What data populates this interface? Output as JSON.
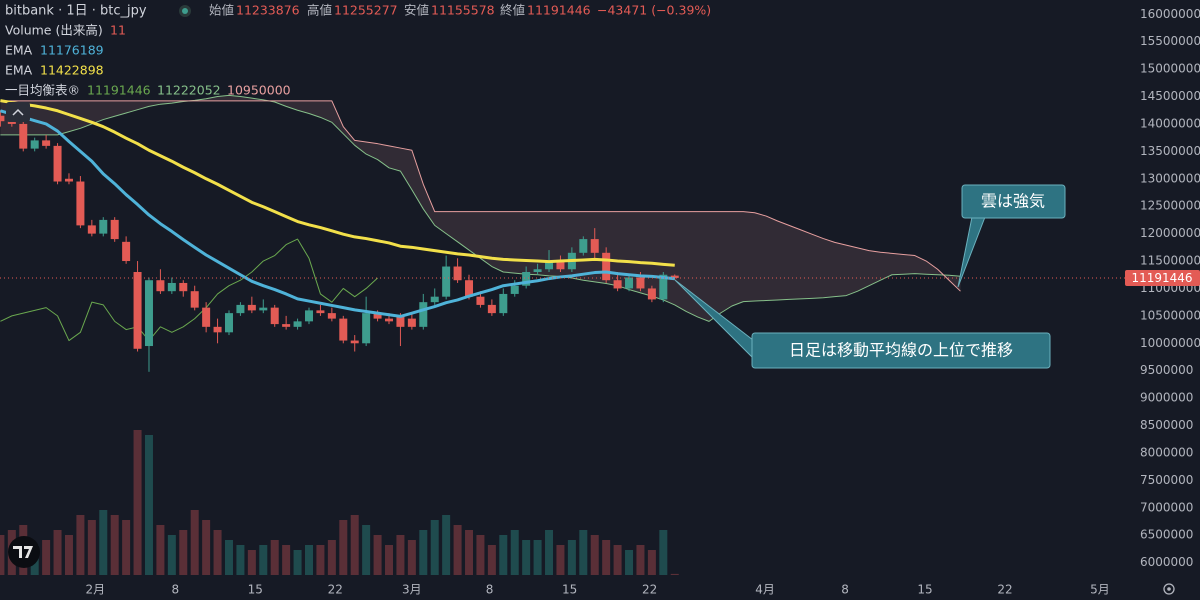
{
  "chart_data": {
    "type": "candlestick",
    "title": "bitbank · 1日 · btc_jpy",
    "ohlc_labels": [
      "始値",
      "高値",
      "安値",
      "終値"
    ],
    "change": "−43471 (−0.39%)",
    "ylim": [
      5720000,
      16260000
    ],
    "yticks": [
      6000000,
      6500000,
      7000000,
      7500000,
      8000000,
      8500000,
      9000000,
      9500000,
      10000000,
      10500000,
      11000000,
      11500000,
      12000000,
      12500000,
      13000000,
      13500000,
      14000000,
      14500000,
      15000000,
      15500000,
      16000000
    ],
    "xlim": [
      0,
      98
    ],
    "xticks": [
      {
        "value": 8.3,
        "label": "2月"
      },
      {
        "value": 15.3,
        "label": "8"
      },
      {
        "value": 22.3,
        "label": "15"
      },
      {
        "value": 29.3,
        "label": "22"
      },
      {
        "value": 36,
        "label": "3月"
      },
      {
        "value": 42.8,
        "label": "8"
      },
      {
        "value": 49.8,
        "label": "15"
      },
      {
        "value": 56.8,
        "label": "22"
      },
      {
        "value": 66.9,
        "label": "4月"
      },
      {
        "value": 73.9,
        "label": "8"
      },
      {
        "value": 80.9,
        "label": "15"
      },
      {
        "value": 87.9,
        "label": "22"
      },
      {
        "value": 96.2,
        "label": "5月"
      }
    ],
    "grid": false,
    "up_color": "#3e9d8e",
    "down_color": "#e35b55",
    "candles": {
      "open": [
        14150000,
        14050000,
        14000000,
        13550000,
        13700000,
        13600000,
        13000000,
        12950000,
        12150000,
        12000000,
        12250000,
        11850000,
        11300000,
        9950000,
        11150000,
        10950000,
        11100000,
        10950000,
        10650000,
        10300000,
        10200000,
        10550000,
        10700000,
        10600000,
        10650000,
        10350000,
        10300000,
        10400000,
        10600000,
        10550000,
        10450000,
        10050000,
        10000000,
        10550000,
        10450000,
        10500000,
        10450000,
        10300000,
        10750000,
        10850000,
        11400000,
        11150000,
        10850000,
        10700000,
        10550000,
        10900000,
        11050000,
        11300000,
        11350000,
        11500000,
        11350000,
        11650000,
        11900000,
        11650000,
        11150000,
        11000000,
        11200000,
        11000000,
        10800000,
        11233876
      ],
      "high": [
        14250000,
        14200000,
        14100000,
        13750000,
        13800000,
        13650000,
        13100000,
        13050000,
        12250000,
        12300000,
        12300000,
        11950000,
        11500000,
        11200000,
        11350000,
        11200000,
        11150000,
        11050000,
        10750000,
        10450000,
        10600000,
        10750000,
        10850000,
        10800000,
        10700000,
        10500000,
        10450000,
        10650000,
        10700000,
        10650000,
        10500000,
        10150000,
        10850000,
        10600000,
        10550000,
        10550000,
        10550000,
        10900000,
        11000000,
        11600000,
        11550000,
        11250000,
        10950000,
        10800000,
        11000000,
        11150000,
        11400000,
        11450000,
        11700000,
        11600000,
        11750000,
        11950000,
        12100000,
        11750000,
        11300000,
        11250000,
        11300000,
        11050000,
        11300000,
        11255277
      ],
      "low": [
        13950000,
        13950000,
        13500000,
        13500000,
        13550000,
        12900000,
        12900000,
        12100000,
        11950000,
        11950000,
        11850000,
        11450000,
        9850000,
        9480000,
        10900000,
        10900000,
        10850000,
        10600000,
        10200000,
        10000000,
        10150000,
        10500000,
        10550000,
        10550000,
        10300000,
        10250000,
        10250000,
        10350000,
        10500000,
        10400000,
        10000000,
        9850000,
        9950000,
        10400000,
        10350000,
        9950000,
        10250000,
        10250000,
        10700000,
        10800000,
        11100000,
        10800000,
        10650000,
        10500000,
        10500000,
        10850000,
        11000000,
        11250000,
        11300000,
        11300000,
        11300000,
        11600000,
        11550000,
        11100000,
        10950000,
        10950000,
        10950000,
        10750000,
        10750000,
        11155578
      ],
      "close": [
        14050000,
        14000000,
        13550000,
        13700000,
        13600000,
        12950000,
        12950000,
        12150000,
        12000000,
        12250000,
        11900000,
        11500000,
        9900000,
        11150000,
        10950000,
        11100000,
        10950000,
        10650000,
        10300000,
        10200000,
        10550000,
        10700000,
        10600000,
        10650000,
        10350000,
        10300000,
        10400000,
        10600000,
        10550000,
        10450000,
        10050000,
        10000000,
        10550000,
        10450000,
        10400000,
        10300000,
        10300000,
        10750000,
        10850000,
        11400000,
        11150000,
        10850000,
        10700000,
        10550000,
        10900000,
        11050000,
        11300000,
        11350000,
        11500000,
        11350000,
        11650000,
        11900000,
        11650000,
        11150000,
        11000000,
        11200000,
        11000000,
        10800000,
        11250000,
        11191446
      ]
    },
    "volume": {
      "name": "Volume (出来高)",
      "ylim": [
        0,
        2500
      ],
      "values": [
        400,
        450,
        500,
        300,
        350,
        450,
        400,
        600,
        550,
        650,
        600,
        550,
        1450,
        1400,
        500,
        400,
        450,
        650,
        550,
        450,
        350,
        300,
        250,
        300,
        350,
        300,
        250,
        300,
        300,
        350,
        550,
        600,
        500,
        400,
        300,
        400,
        350,
        450,
        550,
        600,
        500,
        450,
        400,
        300,
        400,
        450,
        350,
        350,
        450,
        300,
        350,
        450,
        400,
        350,
        300,
        250,
        300,
        250,
        450,
        11
      ]
    },
    "series": [
      {
        "name": "EMA",
        "color": "#4fb3d9",
        "values": [
          14240000,
          14180000,
          14120000,
          14060000,
          14000000,
          13870000,
          13680000,
          13500000,
          13320000,
          13090000,
          12910000,
          12710000,
          12530000,
          12340000,
          12180000,
          12040000,
          11890000,
          11750000,
          11610000,
          11490000,
          11370000,
          11250000,
          11130000,
          11050000,
          10980000,
          10900000,
          10810000,
          10770000,
          10730000,
          10690000,
          10650000,
          10610000,
          10580000,
          10550000,
          10520000,
          10490000,
          10550000,
          10610000,
          10670000,
          10740000,
          10790000,
          10860000,
          10920000,
          10980000,
          11050000,
          11080000,
          11110000,
          11140000,
          11180000,
          11210000,
          11230000,
          11260000,
          11290000,
          11300000,
          11270000,
          11250000,
          11230000,
          11220000,
          11200000,
          11176189
        ]
      },
      {
        "name": "EMA",
        "color": "#f2e04a",
        "values": [
          14425000,
          14390000,
          14360000,
          14330000,
          14290000,
          14240000,
          14170000,
          14100000,
          14030000,
          13950000,
          13850000,
          13740000,
          13640000,
          13520000,
          13420000,
          13320000,
          13210000,
          13110000,
          13000000,
          12900000,
          12790000,
          12680000,
          12570000,
          12490000,
          12400000,
          12310000,
          12220000,
          12160000,
          12110000,
          12050000,
          11990000,
          11940000,
          11910000,
          11870000,
          11830000,
          11770000,
          11750000,
          11720000,
          11690000,
          11660000,
          11630000,
          11610000,
          11580000,
          11550000,
          11530000,
          11520000,
          11510000,
          11500000,
          11490000,
          11500000,
          11510000,
          11520000,
          11530000,
          11520000,
          11500000,
          11490000,
          11470000,
          11460000,
          11440000,
          11422898
        ]
      }
    ],
    "ichimoku": {
      "name": "一目均衡表®",
      "cloud_color": "#e8a0a0",
      "lines": [
        {
          "color": "#6aa84f",
          "values": [
            10400000,
            10500000,
            10550000,
            10600000,
            10650000,
            10500000,
            10050000,
            10200000,
            10750000,
            10700000,
            10400000,
            10250000,
            10300000,
            10050000,
            10300000,
            10200000,
            10300000,
            10450000,
            10650000,
            10900000,
            11050000,
            11150000,
            11300000,
            11500000,
            11600000,
            11800000,
            11900000,
            11550000,
            10900000,
            10750000,
            11000000,
            10850000,
            11000000,
            11191446
          ]
        },
        {
          "color": "#86c08a",
          "values": [
            13800000,
            13800000,
            13800000,
            13800000,
            13800000,
            13800000,
            13860000,
            13920000,
            14000000,
            14080000,
            14140000,
            14200000,
            14260000,
            14320000,
            14360000,
            14380000,
            14410000,
            14430000,
            14460000,
            14500000,
            14520000,
            14500000,
            14470000,
            14440000,
            14400000,
            14320000,
            14250000,
            14190000,
            14120000,
            14030000,
            13820000,
            13610000,
            13450000,
            13350000,
            13200000,
            13140000,
            12800000,
            12450000,
            12150000,
            12000000,
            11850000,
            11700000,
            11550000,
            11400000,
            11300000,
            11280000,
            11260000,
            11250000,
            11230000,
            11220000,
            11190000,
            11150000,
            11120000,
            11090000,
            11050000,
            10980000,
            10920000,
            10860000,
            10790000,
            10700000,
            10580000,
            10480000,
            10400000,
            10550000,
            10680000,
            10760000,
            10770000,
            10780000,
            10790000,
            10800000,
            10810000,
            10820000,
            10830000,
            10850000,
            10870000,
            10950000,
            11050000,
            11150000,
            11250000,
            11260000,
            11270000,
            11260000,
            11250000,
            11240000,
            11222052
          ]
        },
        {
          "color": "#e8a0a0",
          "values": [
            14420000,
            14420000,
            14420000,
            14420000,
            14420000,
            14420000,
            14420000,
            14420000,
            14420000,
            14420000,
            14420000,
            14420000,
            14420000,
            14420000,
            14420000,
            14420000,
            14420000,
            14420000,
            14420000,
            14420000,
            14420000,
            14420000,
            14420000,
            14420000,
            14420000,
            14420000,
            14420000,
            14420000,
            14420000,
            14420000,
            13950000,
            13700000,
            13670000,
            13640000,
            13600000,
            13560000,
            13520000,
            12900000,
            12400000,
            12400000,
            12400000,
            12400000,
            12400000,
            12400000,
            12400000,
            12400000,
            12400000,
            12400000,
            12400000,
            12400000,
            12400000,
            12400000,
            12400000,
            12400000,
            12400000,
            12400000,
            12400000,
            12400000,
            12400000,
            12400000,
            12400000,
            12400000,
            12400000,
            12400000,
            12400000,
            12400000,
            12380000,
            12320000,
            12230000,
            12150000,
            12070000,
            11990000,
            11910000,
            11840000,
            11790000,
            11740000,
            11690000,
            11660000,
            11640000,
            11620000,
            11600000,
            11500000,
            11350000,
            11150000,
            10950000
          ]
        }
      ]
    },
    "annotations": [
      "雲は強気",
      "日足は移動平均線の上位で推移"
    ]
  }
}
